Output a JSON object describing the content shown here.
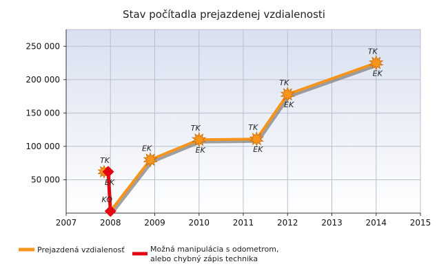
{
  "chart_data": {
    "type": "line",
    "title": "Stav počítadla prejazdenej vzdialenosti",
    "xlim": [
      2007,
      2015
    ],
    "ylim": [
      0,
      275000
    ],
    "x_ticks": [
      2007,
      2008,
      2009,
      2010,
      2011,
      2012,
      2013,
      2014,
      2015
    ],
    "y_ticks": [
      50000,
      100000,
      150000,
      200000,
      250000
    ],
    "x_tick_labels": [
      "2007",
      "2008",
      "2009",
      "2010",
      "2011",
      "2012",
      "2013",
      "2014",
      "2015"
    ],
    "y_tick_labels": [
      "50 000",
      "100 000",
      "150 000",
      "200 000",
      "250 000"
    ],
    "grid": true,
    "legend_position": "bottom-left",
    "colors": {
      "series": "#f7941d",
      "manipulation": "#e30613",
      "plot_bg_top": "#d9e0f0",
      "plot_bg_bottom": "#ffffff"
    },
    "series": [
      {
        "name": "Prejazdená vzdialenosť",
        "points": [
          {
            "x": 2008.0,
            "y": 3000,
            "top": "",
            "bottom": ""
          },
          {
            "x": 2008.9,
            "y": 80000,
            "top": "EK",
            "bottom": ""
          },
          {
            "x": 2010.0,
            "y": 110000,
            "top": "TK",
            "bottom": "EK"
          },
          {
            "x": 2011.3,
            "y": 111000,
            "top": "TK",
            "bottom": "EK"
          },
          {
            "x": 2012.0,
            "y": 178000,
            "top": "TK",
            "bottom": "EK"
          },
          {
            "x": 2014.0,
            "y": 225000,
            "top": "TK",
            "bottom": "EK"
          }
        ]
      },
      {
        "name": "Možná manipulácia s odometrom, alebo chybný zápis technika",
        "points": [
          {
            "x": 2007.95,
            "y": 62000,
            "top": "TK",
            "bottom": "EK"
          },
          {
            "x": 2008.0,
            "y": 3000,
            "top": "KO",
            "bottom": ""
          }
        ]
      }
    ],
    "legend": [
      {
        "label": "Prejazdená vzdialenosť"
      },
      {
        "label": "Možná manipulácia s odometrom,",
        "label2": "alebo chybný zápis technika"
      }
    ]
  }
}
